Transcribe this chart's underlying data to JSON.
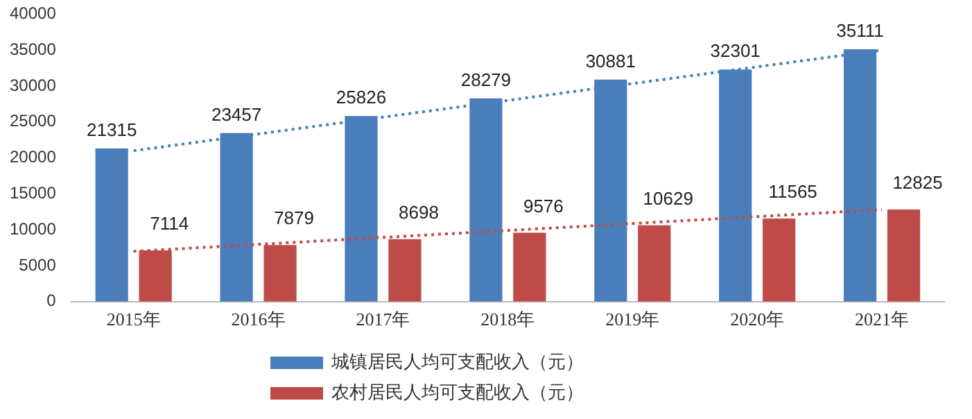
{
  "chart_data": {
    "type": "bar",
    "categories": [
      "2015年",
      "2016年",
      "2017年",
      "2018年",
      "2019年",
      "2020年",
      "2021年"
    ],
    "series": [
      {
        "name": "城镇居民人均可支配收入（元）",
        "color": "#4a7ebb",
        "values": [
          21315,
          23457,
          25826,
          28279,
          30881,
          32301,
          35111
        ],
        "value_labels": [
          "21315",
          "23457",
          "25826",
          "28279",
          "30881",
          "32301",
          "35111"
        ]
      },
      {
        "name": "农村居民人均可支配收入（元）",
        "color": "#be4b48",
        "values": [
          7114,
          7879,
          8698,
          9576,
          10629,
          11565,
          12825
        ],
        "value_labels": [
          "7114",
          "7879",
          "8698",
          "9576",
          "10629",
          "11565",
          "12825"
        ]
      },
      {
        "type": "line",
        "color": "#4a7ebb",
        "x": [
          "2015年",
          "2021年"
        ],
        "values": [
          21000,
          35000
        ],
        "line_style": "dotted",
        "marker": "none"
      },
      {
        "type": "line",
        "color": "#be4b48",
        "x": [
          "2015年",
          "2021年"
        ],
        "values": [
          7000,
          12800
        ],
        "line_style": "dotted",
        "marker": "none"
      }
    ],
    "ylim": [
      0,
      40000
    ],
    "yticks": [
      0,
      5000,
      10000,
      15000,
      20000,
      25000,
      30000,
      35000,
      40000
    ],
    "grid": false,
    "legend": "bottom"
  }
}
